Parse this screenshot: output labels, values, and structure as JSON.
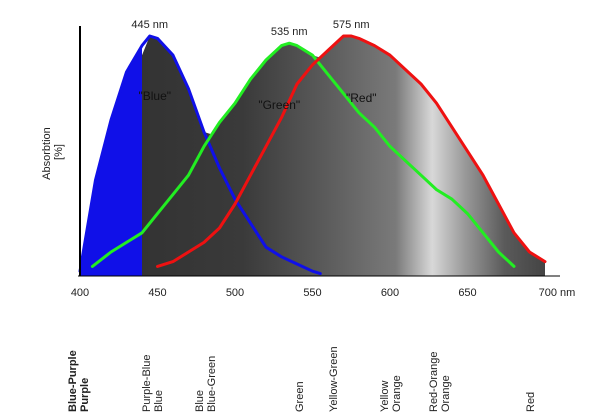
{
  "chart_data": {
    "type": "line",
    "xlabel": "",
    "ylabel": "Absorbtion\n[%]",
    "ylabel_lines": [
      "Absorbtion",
      "[%]"
    ],
    "x_unit": "nm",
    "xlim": [
      400,
      700
    ],
    "ylim": [
      0,
      100
    ],
    "x_ticks": [
      "400",
      "450",
      "500",
      "550",
      "600",
      "650",
      "700 nm"
    ],
    "x_tick_values": [
      400,
      450,
      500,
      550,
      600,
      650,
      700
    ],
    "series": [
      {
        "name": "\"Blue\"",
        "peak_label": "445 nm",
        "color": "#1010e8",
        "filled": true,
        "points": [
          [
            400,
            2
          ],
          [
            410,
            40
          ],
          [
            420,
            65
          ],
          [
            430,
            85
          ],
          [
            440,
            96
          ],
          [
            445,
            100
          ],
          [
            450,
            99
          ],
          [
            460,
            92
          ],
          [
            470,
            78
          ],
          [
            480,
            60
          ],
          [
            490,
            45
          ],
          [
            500,
            32
          ],
          [
            510,
            22
          ],
          [
            520,
            12
          ],
          [
            530,
            8
          ],
          [
            540,
            5
          ],
          [
            550,
            2
          ],
          [
            555,
            1
          ]
        ]
      },
      {
        "name": "\"Green\"",
        "peak_label": "535 nm",
        "color": "#22ee22",
        "filled": false,
        "points": [
          [
            408,
            4
          ],
          [
            420,
            10
          ],
          [
            430,
            14
          ],
          [
            440,
            18
          ],
          [
            450,
            26
          ],
          [
            460,
            34
          ],
          [
            470,
            42
          ],
          [
            480,
            54
          ],
          [
            490,
            64
          ],
          [
            500,
            72
          ],
          [
            510,
            82
          ],
          [
            520,
            90
          ],
          [
            530,
            96
          ],
          [
            535,
            97
          ],
          [
            540,
            96
          ],
          [
            550,
            92
          ],
          [
            560,
            84
          ],
          [
            570,
            76
          ],
          [
            580,
            68
          ],
          [
            590,
            62
          ],
          [
            600,
            54
          ],
          [
            610,
            48
          ],
          [
            620,
            42
          ],
          [
            630,
            36
          ],
          [
            640,
            32
          ],
          [
            650,
            26
          ],
          [
            660,
            18
          ],
          [
            670,
            10
          ],
          [
            680,
            4
          ]
        ]
      },
      {
        "name": "\"Red\"",
        "peak_label": "575 nm",
        "color": "#ee1111",
        "filled": false,
        "points": [
          [
            450,
            4
          ],
          [
            460,
            6
          ],
          [
            470,
            10
          ],
          [
            480,
            14
          ],
          [
            490,
            20
          ],
          [
            500,
            30
          ],
          [
            510,
            42
          ],
          [
            520,
            54
          ],
          [
            530,
            66
          ],
          [
            540,
            80
          ],
          [
            550,
            88
          ],
          [
            560,
            94
          ],
          [
            570,
            100
          ],
          [
            575,
            100
          ],
          [
            580,
            99
          ],
          [
            590,
            96
          ],
          [
            600,
            92
          ],
          [
            610,
            86
          ],
          [
            620,
            80
          ],
          [
            630,
            72
          ],
          [
            640,
            62
          ],
          [
            650,
            52
          ],
          [
            660,
            42
          ],
          [
            670,
            30
          ],
          [
            680,
            18
          ],
          [
            690,
            10
          ],
          [
            700,
            6
          ]
        ]
      }
    ],
    "spectrum_labels": [
      {
        "lines": [
          "Blue-Purple",
          "Purple"
        ],
        "bold": true
      },
      {
        "lines": [
          "Purple-Blue",
          "Blue"
        ],
        "bold": false
      },
      {
        "lines": [
          "Blue",
          "Blue-Green"
        ],
        "bold": false
      },
      {
        "lines": [
          "Green"
        ],
        "bold": false
      },
      {
        "lines": [
          "Yellow-Green"
        ],
        "bold": false
      },
      {
        "lines": [
          "Yellow",
          "Orange"
        ],
        "bold": false
      },
      {
        "lines": [
          "Red-Orange",
          "Orange"
        ],
        "bold": false
      },
      {
        "lines": [
          "Red"
        ],
        "bold": false
      }
    ],
    "background": "grayscale spectrum gradient under curves"
  }
}
